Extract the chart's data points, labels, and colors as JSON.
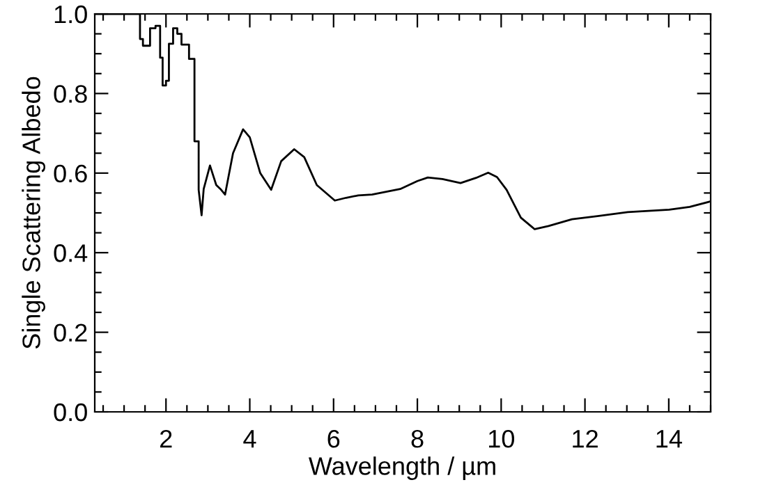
{
  "chart_data": {
    "type": "line",
    "xlabel": "Wavelength / µm",
    "ylabel": "Single Scattering Albedo",
    "xlim": [
      0.3,
      15
    ],
    "ylim": [
      0,
      1
    ],
    "xticks": [
      2,
      4,
      6,
      8,
      10,
      12,
      14
    ],
    "yticks": [
      {
        "value": 0,
        "label": "0.0"
      },
      {
        "value": 0.2,
        "label": "0.2"
      },
      {
        "value": 0.4,
        "label": "0.4"
      },
      {
        "value": 0.6,
        "label": "0.6"
      },
      {
        "value": 0.8,
        "label": "0.8"
      },
      {
        "value": 1,
        "label": "1.0"
      }
    ],
    "grid": false,
    "marker": "none",
    "line_style": "solid",
    "series": [
      {
        "color": "#000000",
        "x": [
          0.3,
          1.38,
          1.38,
          1.45,
          1.45,
          1.62,
          1.62,
          1.75,
          1.75,
          1.86,
          1.86,
          1.92,
          1.92,
          2.0,
          2.0,
          2.07,
          2.07,
          2.17,
          2.17,
          2.27,
          2.27,
          2.37,
          2.37,
          2.55,
          2.55,
          2.68,
          2.68,
          2.78,
          2.78,
          2.85,
          2.9,
          3.05,
          3.2,
          3.3,
          3.41,
          3.6,
          3.84,
          4.0,
          4.25,
          4.51,
          4.75,
          5.06,
          5.3,
          5.6,
          6.03,
          6.3,
          6.59,
          6.92,
          7.59,
          8.0,
          8.25,
          8.6,
          9.03,
          9.4,
          9.69,
          9.9,
          10.13,
          10.47,
          10.8,
          11.13,
          11.69,
          12.3,
          13.02,
          14.01,
          14.5,
          15.0
        ],
        "values": [
          1.0,
          1.0,
          0.937,
          0.937,
          0.92,
          0.92,
          0.964,
          0.964,
          0.97,
          0.97,
          0.89,
          0.89,
          0.82,
          0.82,
          0.832,
          0.832,
          0.925,
          0.925,
          0.964,
          0.964,
          0.95,
          0.95,
          0.923,
          0.923,
          0.887,
          0.887,
          0.68,
          0.68,
          0.558,
          0.494,
          0.56,
          0.619,
          0.57,
          0.56,
          0.546,
          0.65,
          0.71,
          0.69,
          0.6,
          0.558,
          0.63,
          0.66,
          0.64,
          0.57,
          0.531,
          0.538,
          0.544,
          0.546,
          0.56,
          0.58,
          0.589,
          0.585,
          0.575,
          0.588,
          0.601,
          0.59,
          0.558,
          0.488,
          0.459,
          0.467,
          0.484,
          0.492,
          0.502,
          0.508,
          0.515,
          0.529
        ]
      }
    ]
  }
}
